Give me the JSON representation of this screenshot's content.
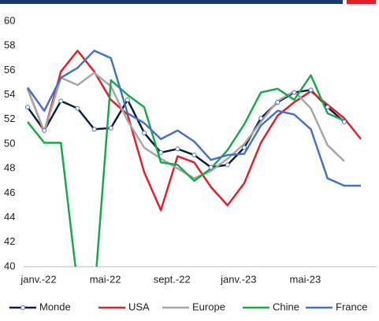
{
  "chart_data": {
    "type": "line",
    "categories": [
      "janv.-22",
      null,
      null,
      null,
      "mai-22",
      null,
      null,
      null,
      "sept.-22",
      null,
      null,
      null,
      "janv.-23",
      null,
      null,
      null,
      "mai-23",
      null,
      null,
      null,
      null
    ],
    "series": [
      {
        "name": "Monde",
        "color": "#0d1f3c",
        "values": [
          53.0,
          51.1,
          53.5,
          52.9,
          51.2,
          51.3,
          53.6,
          50.9,
          49.3,
          49.6,
          49.1,
          48.1,
          48.3,
          49.7,
          52.1,
          53.4,
          54.2,
          54.4,
          53.0,
          51.8,
          null
        ]
      },
      {
        "name": "USA",
        "color": "#e0202a",
        "values": [
          54.5,
          51.0,
          55.9,
          57.6,
          55.9,
          53.6,
          52.4,
          47.7,
          44.6,
          49.0,
          48.5,
          46.5,
          45.0,
          46.8,
          50.1,
          52.3,
          53.4,
          54.3,
          53.2,
          52.1,
          50.4
        ]
      },
      {
        "name": "Europe",
        "color": "#a6a6a6",
        "values": [
          54.5,
          51.0,
          55.4,
          54.8,
          55.8,
          54.7,
          51.9,
          49.7,
          48.8,
          48.0,
          47.2,
          47.8,
          48.8,
          50.0,
          51.8,
          53.5,
          54.3,
          52.9,
          49.9,
          48.6,
          null
        ]
      },
      {
        "name": "Chine",
        "color": "#1aa84a",
        "values": [
          51.8,
          50.1,
          50.1,
          38.5,
          37.5,
          55.2,
          54.0,
          53.0,
          48.5,
          48.3,
          47.0,
          48.0,
          49.5,
          51.6,
          54.2,
          54.5,
          53.6,
          55.6,
          52.5,
          51.9,
          null
        ]
      },
      {
        "name": "France",
        "color": "#4472c4",
        "values": [
          54.6,
          52.7,
          55.4,
          56.2,
          57.6,
          57.0,
          52.5,
          51.7,
          50.4,
          51.1,
          50.2,
          48.7,
          49.1,
          49.2,
          51.5,
          52.7,
          52.4,
          51.2,
          47.2,
          46.6,
          46.6
        ]
      }
    ],
    "ylim": [
      40,
      60
    ],
    "yticks": [
      40,
      42,
      44,
      46,
      48,
      50,
      52,
      54,
      56,
      58,
      60
    ],
    "legend": "bottom"
  }
}
